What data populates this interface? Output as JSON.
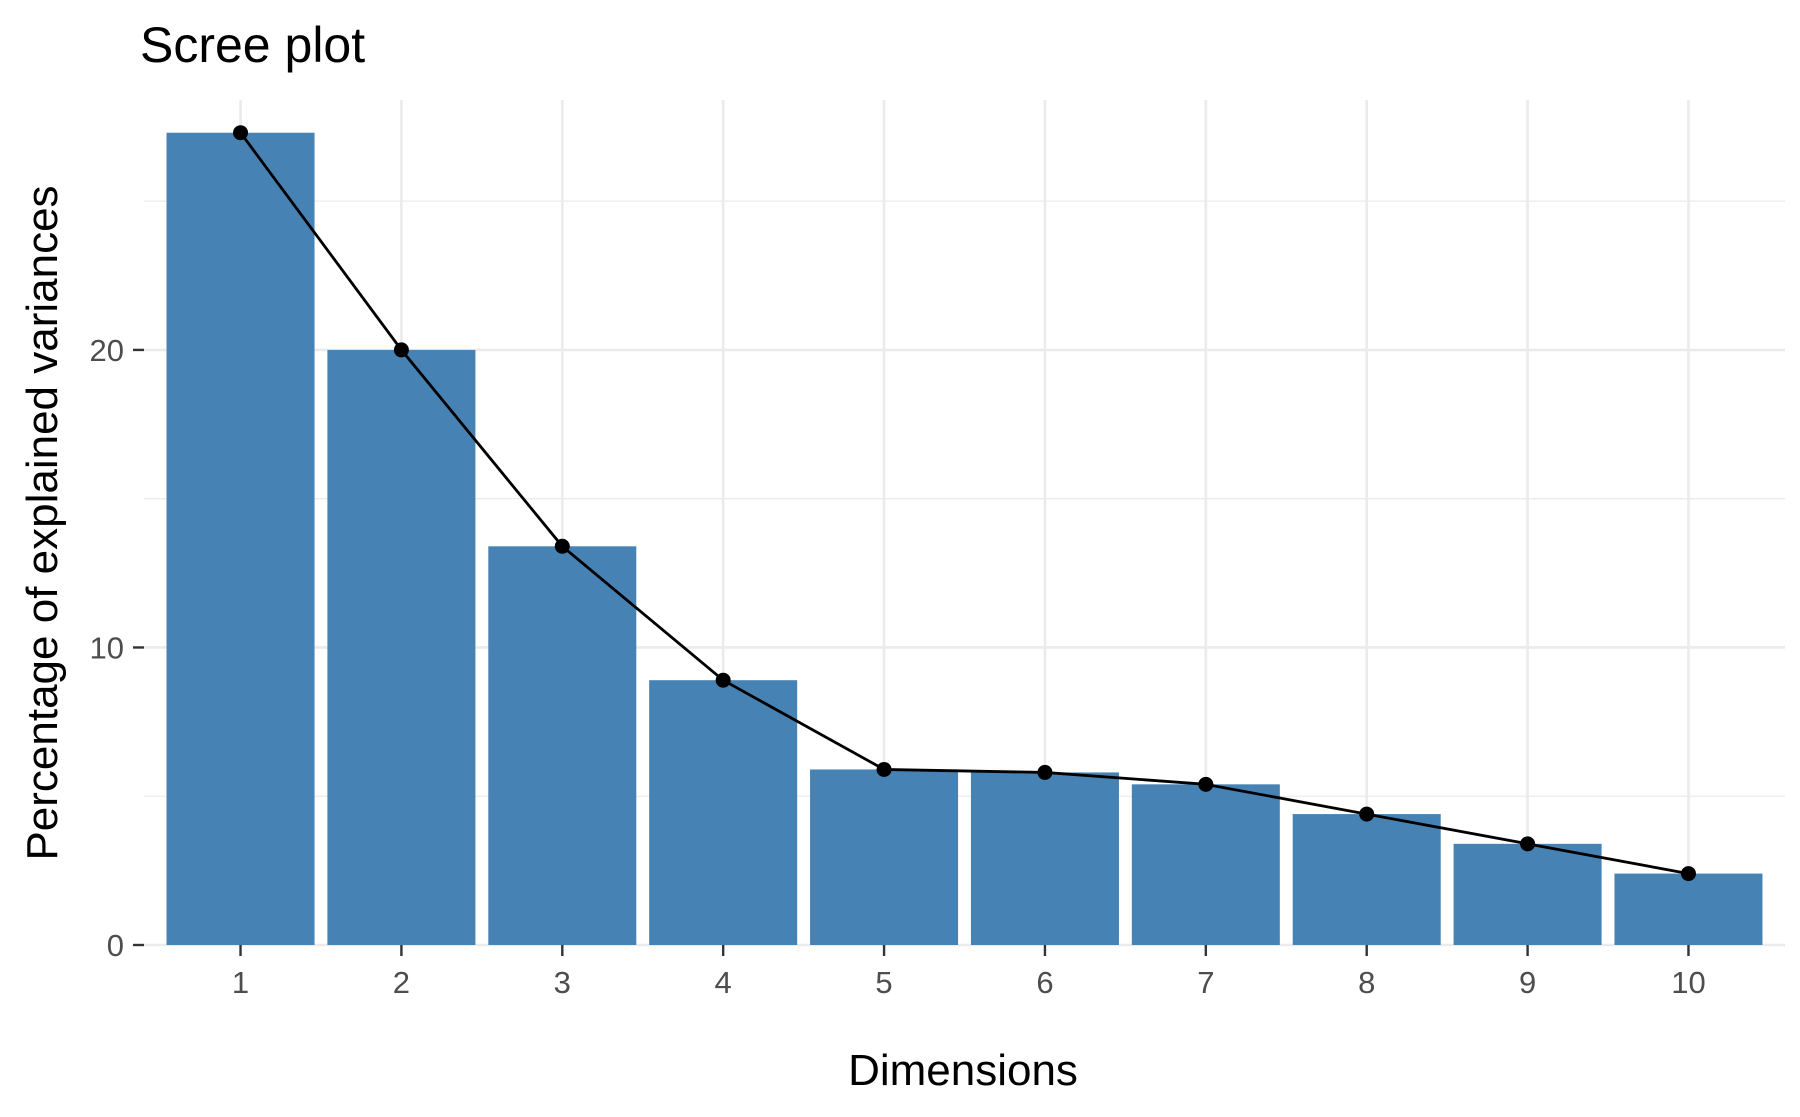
{
  "chart_data": {
    "type": "bar",
    "title": "Scree plot",
    "xlabel": "Dimensions",
    "ylabel": "Percentage of explained variances",
    "categories": [
      "1",
      "2",
      "3",
      "4",
      "5",
      "6",
      "7",
      "8",
      "9",
      "10"
    ],
    "values": [
      27.3,
      20.0,
      13.4,
      8.9,
      5.9,
      5.8,
      5.4,
      4.4,
      3.4,
      2.4
    ],
    "overlay_line": true,
    "ylim": [
      0,
      28.4
    ],
    "yticks": [
      0,
      10,
      20
    ],
    "yticks_minor": [
      5,
      15,
      25
    ],
    "grid": true,
    "colors": {
      "bar": "#4682b4",
      "line": "#000000",
      "point": "#000000",
      "grid": "#ebebeb",
      "tick_label": "#4d4d4d"
    }
  }
}
